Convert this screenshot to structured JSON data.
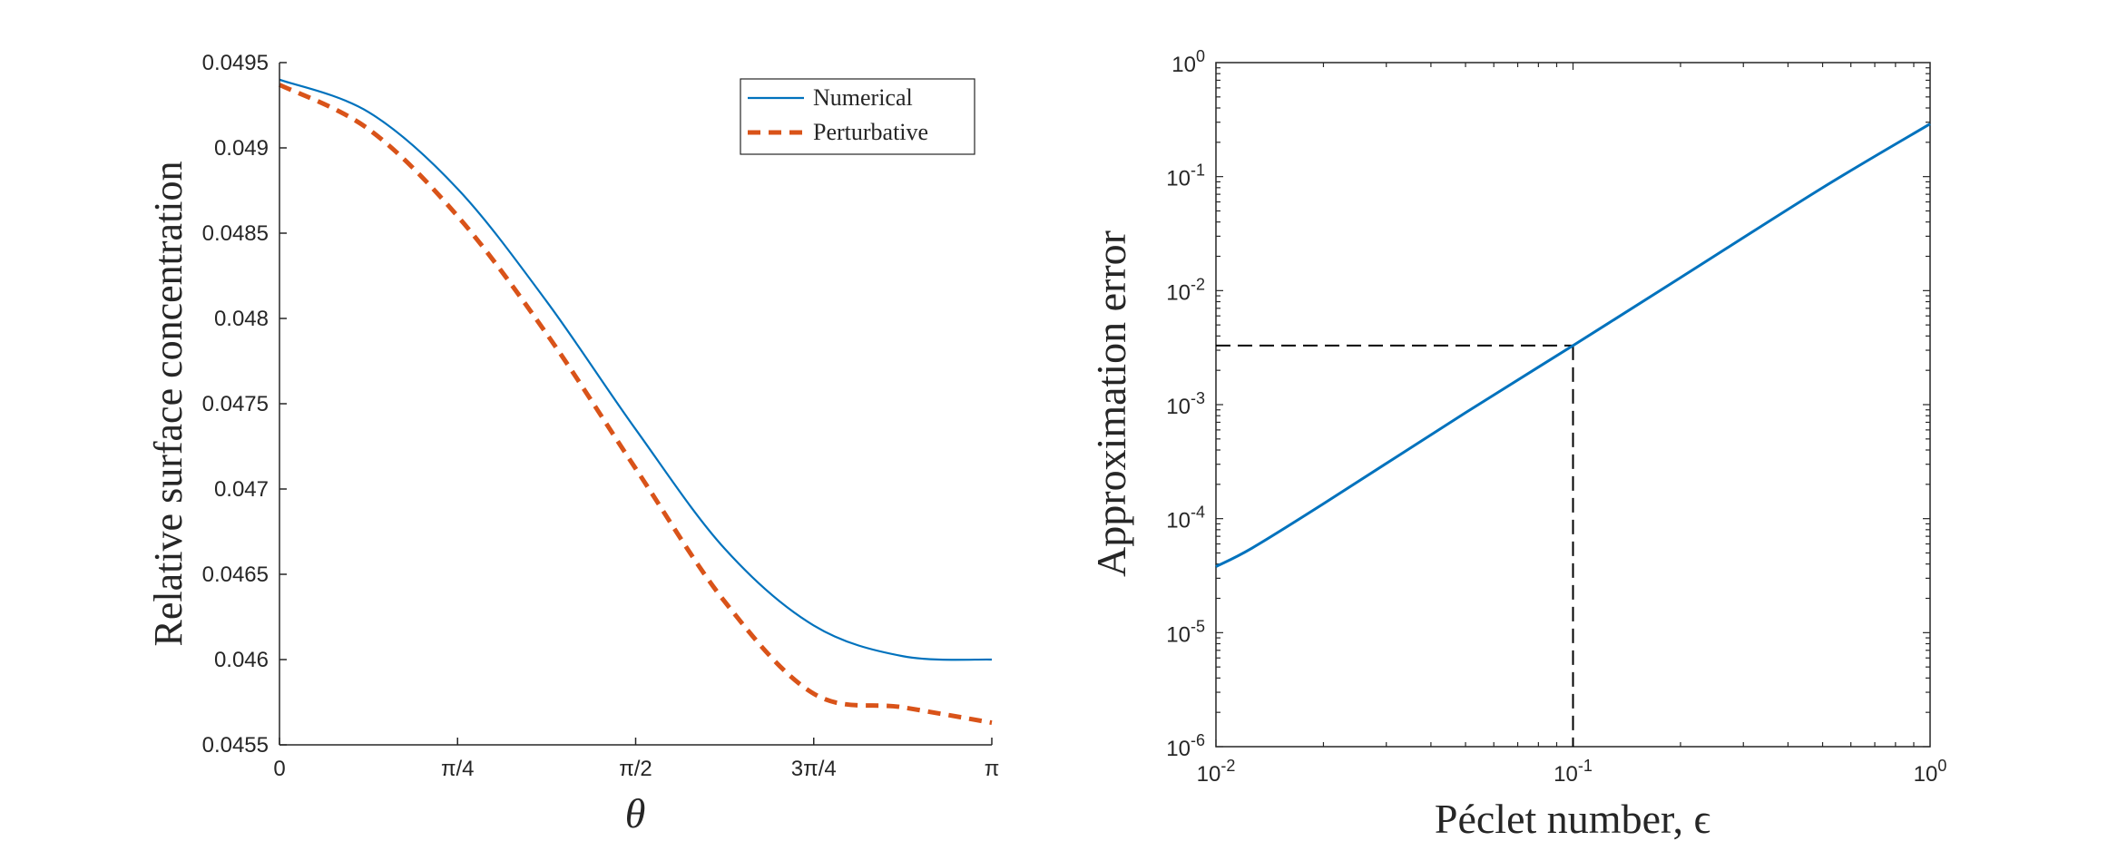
{
  "chart_data": [
    {
      "type": "line",
      "title": "",
      "xlabel": "θ",
      "ylabel": "Relative surface concentration",
      "xlim": [
        0,
        3.14159
      ],
      "ylim": [
        0.0455,
        0.0495
      ],
      "x_ticks": [
        {
          "value": 0,
          "label": "0"
        },
        {
          "value": 0.7854,
          "label": "π/4"
        },
        {
          "value": 1.5708,
          "label": "π/2"
        },
        {
          "value": 2.3562,
          "label": "3π/4"
        },
        {
          "value": 3.14159,
          "label": "π"
        }
      ],
      "y_ticks": [
        {
          "value": 0.0455,
          "label": "0.0455"
        },
        {
          "value": 0.046,
          "label": "0.046"
        },
        {
          "value": 0.0465,
          "label": "0.0465"
        },
        {
          "value": 0.047,
          "label": "0.047"
        },
        {
          "value": 0.0475,
          "label": "0.0475"
        },
        {
          "value": 0.048,
          "label": "0.048"
        },
        {
          "value": 0.0485,
          "label": "0.0485"
        },
        {
          "value": 0.049,
          "label": "0.049"
        },
        {
          "value": 0.0495,
          "label": "0.0495"
        }
      ],
      "legend": {
        "position": "top-right",
        "entries": [
          "Numerical",
          "Perturbative"
        ]
      },
      "series": [
        {
          "name": "Numerical",
          "style": "solid",
          "color": "#0072BD",
          "x": [
            0,
            0.3927,
            0.7854,
            1.1781,
            1.5708,
            1.9635,
            2.3562,
            2.7489,
            3.14159
          ],
          "y": [
            0.0494,
            0.04921,
            0.04876,
            0.0481,
            0.04735,
            0.04665,
            0.0462,
            0.04602,
            0.046
          ]
        },
        {
          "name": "Perturbative",
          "style": "dashed",
          "color": "#D95319",
          "x": [
            0,
            0.3927,
            0.7854,
            1.1781,
            1.5708,
            1.9635,
            2.3562,
            2.7489,
            3.14159
          ],
          "y": [
            0.04937,
            0.04911,
            0.0486,
            0.04791,
            0.04712,
            0.04634,
            0.0458,
            0.04572,
            0.04563
          ]
        }
      ]
    },
    {
      "type": "line",
      "title": "",
      "xlabel": "Péclet number, ϵ",
      "ylabel": "Approximation error",
      "xscale": "log",
      "yscale": "log",
      "xlim": [
        0.01,
        1
      ],
      "ylim": [
        1e-06,
        1
      ],
      "x_ticks": [
        {
          "value": 0.01,
          "base": "10",
          "exp": "-2"
        },
        {
          "value": 0.1,
          "base": "10",
          "exp": "-1"
        },
        {
          "value": 1,
          "base": "10",
          "exp": "0"
        }
      ],
      "y_ticks": [
        {
          "value": 1e-06,
          "base": "10",
          "exp": "-6"
        },
        {
          "value": 1e-05,
          "base": "10",
          "exp": "-5"
        },
        {
          "value": 0.0001,
          "base": "10",
          "exp": "-4"
        },
        {
          "value": 0.001,
          "base": "10",
          "exp": "-3"
        },
        {
          "value": 0.01,
          "base": "10",
          "exp": "-2"
        },
        {
          "value": 0.1,
          "base": "10",
          "exp": "-1"
        },
        {
          "value": 1,
          "base": "10",
          "exp": "0"
        }
      ],
      "series": [
        {
          "name": "Approximation error",
          "style": "solid",
          "color": "#0072BD",
          "x": [
            0.01,
            0.0126,
            0.02,
            0.05,
            0.1,
            0.2,
            0.5,
            1
          ],
          "y": [
            3.8e-05,
            5.5e-05,
            0.000135,
            0.00085,
            0.0033,
            0.013,
            0.08,
            0.29
          ]
        }
      ],
      "reference_lines": {
        "x": 0.1,
        "y": 0.0033,
        "style": "dashed",
        "color": "#000000"
      }
    }
  ]
}
